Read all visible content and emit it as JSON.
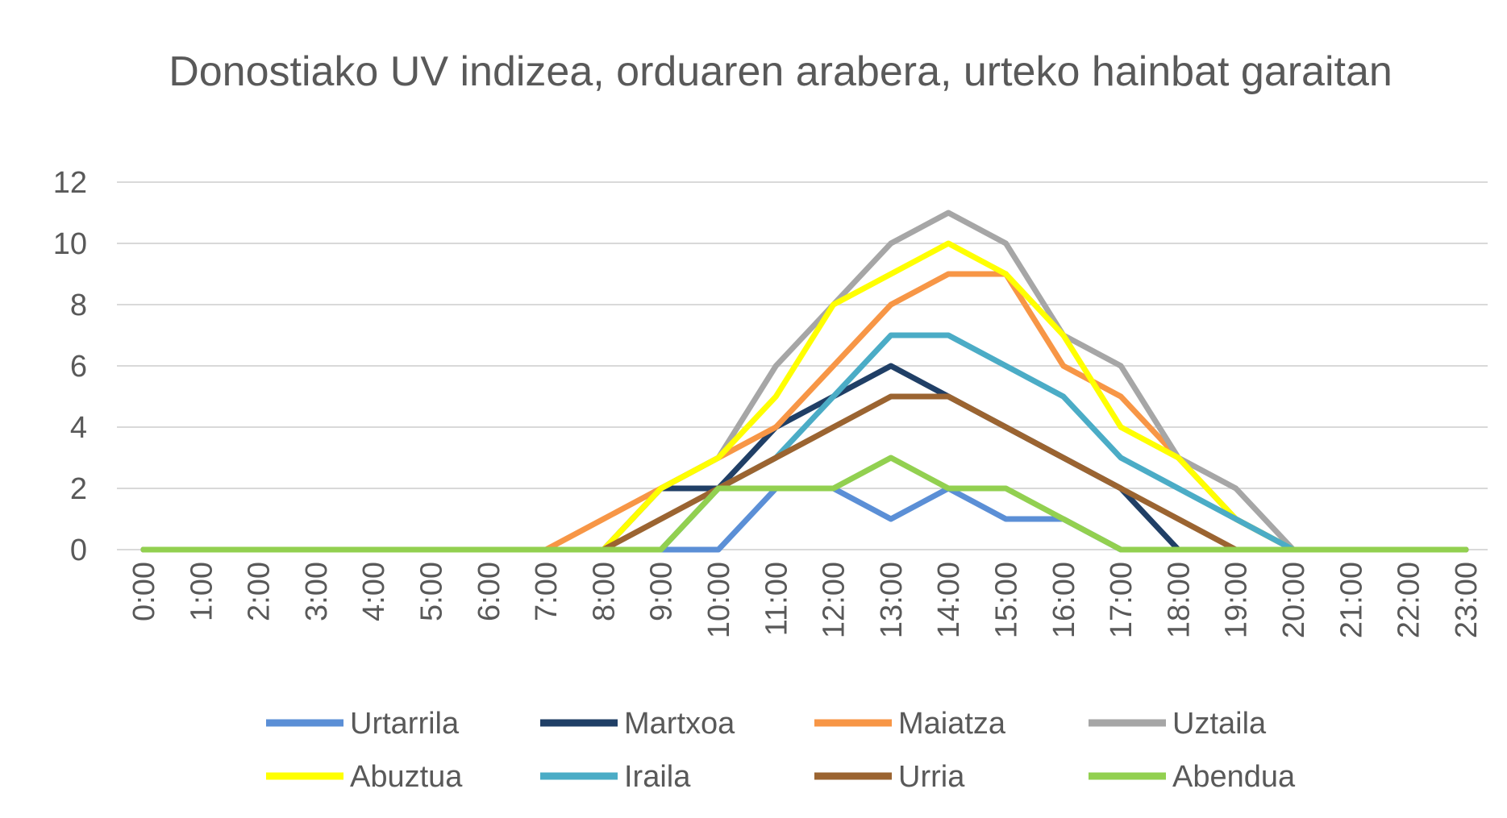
{
  "chart_data": {
    "type": "line",
    "title": "Donostiako UV indizea, orduaren arabera, urteko hainbat garaitan",
    "xlabel": "",
    "ylabel": "",
    "ylim": [
      0,
      12
    ],
    "yticks": [
      0,
      2,
      4,
      6,
      8,
      10,
      12
    ],
    "grid": true,
    "legend_position": "bottom",
    "categories": [
      "0:00",
      "1:00",
      "2:00",
      "3:00",
      "4:00",
      "5:00",
      "6:00",
      "7:00",
      "8:00",
      "9:00",
      "10:00",
      "11:00",
      "12:00",
      "13:00",
      "14:00",
      "15:00",
      "16:00",
      "17:00",
      "18:00",
      "19:00",
      "20:00",
      "21:00",
      "22:00",
      "23:00"
    ],
    "series": [
      {
        "name": "Urtarrila",
        "color": "#5b8fd6",
        "values": [
          0,
          0,
          0,
          0,
          0,
          0,
          0,
          0,
          0,
          0,
          0,
          2,
          2,
          1,
          2,
          1,
          1,
          0,
          0,
          0,
          0,
          0,
          0,
          0
        ]
      },
      {
        "name": "Martxoa",
        "color": "#203f66",
        "values": [
          0,
          0,
          0,
          0,
          0,
          0,
          0,
          0,
          0,
          2,
          2,
          4,
          5,
          6,
          5,
          4,
          3,
          2,
          0,
          0,
          0,
          0,
          0,
          0
        ]
      },
      {
        "name": "Maiatza",
        "color": "#f79646",
        "values": [
          0,
          0,
          0,
          0,
          0,
          0,
          0,
          0,
          1,
          2,
          3,
          4,
          6,
          8,
          9,
          9,
          6,
          5,
          3,
          1,
          0,
          0,
          0,
          0
        ]
      },
      {
        "name": "Uztaila",
        "color": "#a6a6a6",
        "values": [
          0,
          0,
          0,
          0,
          0,
          0,
          0,
          0,
          0,
          2,
          3,
          6,
          8,
          10,
          11,
          10,
          7,
          6,
          3,
          2,
          0,
          0,
          0,
          0
        ]
      },
      {
        "name": "Abuztua",
        "color": "#ffff00",
        "values": [
          0,
          0,
          0,
          0,
          0,
          0,
          0,
          0,
          0,
          2,
          3,
          5,
          8,
          9,
          10,
          9,
          7,
          4,
          3,
          1,
          0,
          0,
          0,
          0
        ]
      },
      {
        "name": "Iraila",
        "color": "#4bacc6",
        "values": [
          0,
          0,
          0,
          0,
          0,
          0,
          0,
          0,
          0,
          0,
          2,
          3,
          5,
          7,
          7,
          6,
          5,
          3,
          2,
          1,
          0,
          0,
          0,
          0
        ]
      },
      {
        "name": "Urria",
        "color": "#9b6431",
        "values": [
          0,
          0,
          0,
          0,
          0,
          0,
          0,
          0,
          0,
          1,
          2,
          3,
          4,
          5,
          5,
          4,
          3,
          2,
          1,
          0,
          0,
          0,
          0,
          0
        ]
      },
      {
        "name": "Abendua",
        "color": "#92d050",
        "values": [
          0,
          0,
          0,
          0,
          0,
          0,
          0,
          0,
          0,
          0,
          2,
          2,
          2,
          3,
          2,
          2,
          1,
          0,
          0,
          0,
          0,
          0,
          0,
          0
        ]
      }
    ]
  }
}
